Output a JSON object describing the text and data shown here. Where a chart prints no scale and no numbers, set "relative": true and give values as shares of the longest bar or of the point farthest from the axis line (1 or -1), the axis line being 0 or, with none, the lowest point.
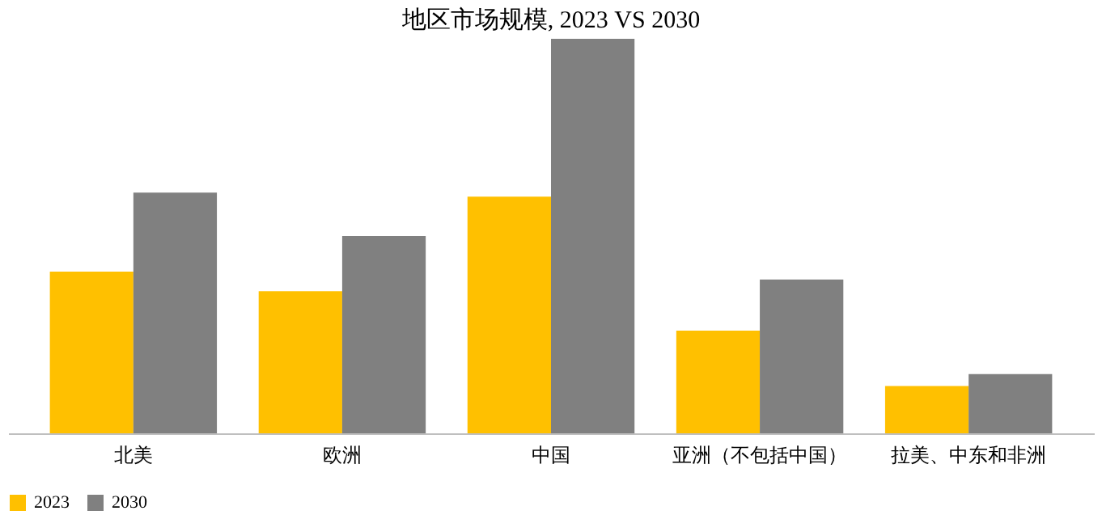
{
  "chart_data": {
    "type": "bar",
    "title": "地区市场规模, 2023 VS 2030",
    "categories": [
      "北美",
      "欧洲",
      "中国",
      "亚洲（不包括中国）",
      "拉美、中东和非洲"
    ],
    "relative": true,
    "legend": "bottom",
    "grid": false,
    "series": [
      {
        "name": "2023",
        "color": "#ffc000",
        "values": [
          0.41,
          0.36,
          0.6,
          0.26,
          0.12
        ]
      },
      {
        "name": "2030",
        "color": "#808080",
        "values": [
          0.61,
          0.5,
          1.0,
          0.39,
          0.15
        ]
      }
    ]
  }
}
